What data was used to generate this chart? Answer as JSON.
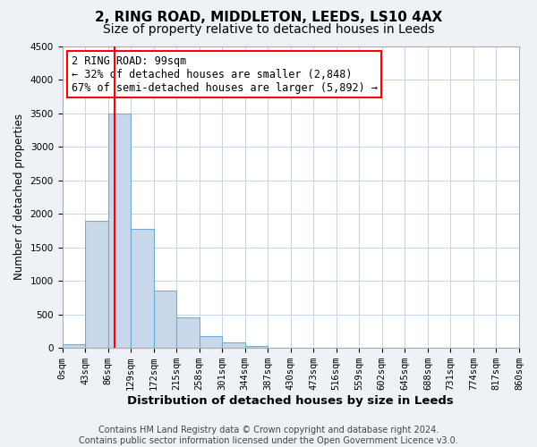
{
  "title": "2, RING ROAD, MIDDLETON, LEEDS, LS10 4AX",
  "subtitle": "Size of property relative to detached houses in Leeds",
  "xlabel": "Distribution of detached houses by size in Leeds",
  "ylabel": "Number of detached properties",
  "bin_edges": [
    0,
    43,
    86,
    129,
    172,
    215,
    258,
    301,
    344,
    387,
    430,
    473,
    516,
    559,
    602,
    645,
    688,
    731,
    774,
    817,
    860
  ],
  "bar_values": [
    50,
    1900,
    3500,
    1780,
    850,
    450,
    175,
    80,
    30,
    0,
    0,
    0,
    0,
    0,
    0,
    0,
    0,
    0,
    0,
    0
  ],
  "bar_color": "#c8d8ea",
  "bar_edgecolor": "#6baed6",
  "vline_x": 99,
  "vline_color": "red",
  "ylim": [
    0,
    4500
  ],
  "annotation_line1": "2 RING ROAD: 99sqm",
  "annotation_line2": "← 32% of detached houses are smaller (2,848)",
  "annotation_line3": "67% of semi-detached houses are larger (5,892) →",
  "footer1": "Contains HM Land Registry data © Crown copyright and database right 2024.",
  "footer2": "Contains public sector information licensed under the Open Government Licence v3.0.",
  "title_fontsize": 11,
  "subtitle_fontsize": 10,
  "xlabel_fontsize": 9.5,
  "ylabel_fontsize": 8.5,
  "tick_labelsize": 7.5,
  "annotation_fontsize": 8.5,
  "footer_fontsize": 7,
  "background_color": "#eef2f7",
  "plot_background_color": "#ffffff",
  "grid_color": "#c5d5e8"
}
